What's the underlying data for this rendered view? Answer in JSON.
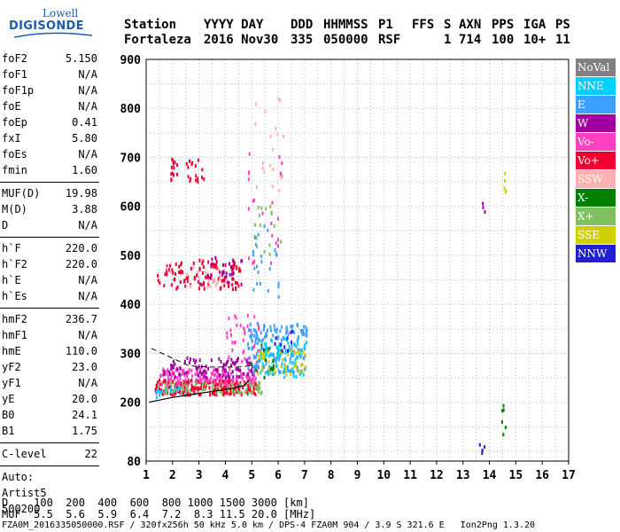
{
  "logo": {
    "line1": "Lowell",
    "line2": "DIGISONDE"
  },
  "header": {
    "row1": [
      "Station",
      "YYYY DAY",
      "DDD",
      "HHMMSS",
      "P1",
      "FFS",
      "S",
      "AXN",
      "PPS",
      "IGA",
      "PS"
    ],
    "row2": [
      "Fortaleza",
      "2016 Nov30",
      "335",
      "050000",
      "RSF",
      "",
      "1",
      "714",
      "100",
      "10+",
      "11"
    ]
  },
  "parameters": {
    "group1": [
      {
        "label": "foF2",
        "value": "5.150"
      },
      {
        "label": "foF1",
        "value": "N/A"
      },
      {
        "label": "foF1p",
        "value": "N/A"
      },
      {
        "label": "foE",
        "value": "N/A"
      },
      {
        "label": "foEp",
        "value": "0.41"
      },
      {
        "label": "fxI",
        "value": "5.80"
      },
      {
        "label": "foEs",
        "value": "N/A"
      },
      {
        "label": "fmin",
        "value": "1.60"
      }
    ],
    "group2": [
      {
        "label": "MUF(D)",
        "value": "19.98"
      },
      {
        "label": "M(D)",
        "value": "3.88"
      },
      {
        "label": "D",
        "value": "N/A"
      }
    ],
    "group3": [
      {
        "label": "h`F",
        "value": "220.0"
      },
      {
        "label": "h`F2",
        "value": "220.0"
      },
      {
        "label": "h`E",
        "value": "N/A"
      },
      {
        "label": "h`Es",
        "value": "N/A"
      }
    ],
    "group4": [
      {
        "label": "hmF2",
        "value": "236.7"
      },
      {
        "label": "hmF1",
        "value": "N/A"
      },
      {
        "label": "hmE",
        "value": "110.0"
      },
      {
        "label": "yF2",
        "value": "23.0"
      },
      {
        "label": "yF1",
        "value": "N/A"
      },
      {
        "label": "yE",
        "value": "20.0"
      },
      {
        "label": "B0",
        "value": "24.1"
      },
      {
        "label": "B1",
        "value": "1.75"
      }
    ],
    "clevel": {
      "label": "C-level",
      "value": "22"
    },
    "auto_label": "Auto:",
    "auto_name": "Artist5",
    "auto_version": "500200"
  },
  "legend": [
    {
      "label": "NoVal",
      "color": "#808080"
    },
    {
      "label": "NNE",
      "color": "#00d0ff"
    },
    {
      "label": "E",
      "color": "#3ca0ff"
    },
    {
      "label": "W",
      "color": "#a000a0"
    },
    {
      "label": "Vo-",
      "color": "#ff40c0"
    },
    {
      "label": "Vo+",
      "color": "#f00030"
    },
    {
      "label": "SSW",
      "color": "#ffb0b0"
    },
    {
      "label": "X-",
      "color": "#008000"
    },
    {
      "label": "X+",
      "color": "#80c060"
    },
    {
      "label": "SSE",
      "color": "#d0d000"
    },
    {
      "label": "NNW",
      "color": "#2020d0"
    }
  ],
  "footer": {
    "d_label": "D",
    "d_values": [
      "100",
      "200",
      "400",
      "600",
      "800",
      "1000",
      "1500",
      "3000"
    ],
    "d_unit": "[km]",
    "muf_label": "MUF",
    "muf_values": [
      "5.5",
      "5.6",
      "5.9",
      "6.4",
      "7.2",
      "8.3",
      "11.5",
      "20.0"
    ],
    "muf_unit": "[MHz]",
    "info": "FZA0M_2016335050000.RSF / 320fx256h 50 kHz 5.0 km / DPS-4 FZA0M 904 / 3.9 S 321.6 E   Ion2Png 1.3.20"
  },
  "chart_data": {
    "type": "scatter",
    "xlim": [
      1,
      17
    ],
    "ylim": [
      80,
      900
    ],
    "x_ticks": [
      1,
      2,
      3,
      4,
      5,
      6,
      7,
      8,
      9,
      10,
      11,
      12,
      13,
      14,
      15,
      16,
      17
    ],
    "y_ticks": [
      80,
      200,
      300,
      400,
      500,
      600,
      700,
      800,
      900
    ],
    "grid": true,
    "legend_position": "right",
    "series": [
      {
        "name": "Vo+",
        "color": "#f00030",
        "clusters": [
          {
            "x": [
              1.3,
              5.2
            ],
            "y": [
              215,
              245
            ],
            "n": 260
          },
          {
            "x": [
              1.4,
              4.6
            ],
            "y": [
              430,
              490
            ],
            "n": 110
          },
          {
            "x": [
              1.9,
              3.3
            ],
            "y": [
              650,
              700
            ],
            "n": 30
          }
        ]
      },
      {
        "name": "Vo-",
        "color": "#ff40c0",
        "clusters": [
          {
            "x": [
              1.5,
              5.2
            ],
            "y": [
              235,
              270
            ],
            "n": 170
          },
          {
            "x": [
              4.0,
              5.3
            ],
            "y": [
              280,
              380
            ],
            "n": 40
          },
          {
            "x": [
              4.8,
              6.2
            ],
            "y": [
              480,
              720
            ],
            "n": 24
          }
        ]
      },
      {
        "name": "W",
        "color": "#a000a0",
        "clusters": [
          {
            "x": [
              1.6,
              5.0
            ],
            "y": [
              250,
              290
            ],
            "n": 90
          },
          {
            "x": [
              3.0,
              4.6
            ],
            "y": [
              440,
              500
            ],
            "n": 26
          },
          {
            "x": [
              13.7,
              13.8
            ],
            "y": [
              575,
              615
            ],
            "n": 3
          }
        ]
      },
      {
        "name": "E",
        "color": "#3ca0ff",
        "clusters": [
          {
            "x": [
              4.8,
              7.1
            ],
            "y": [
              260,
              360
            ],
            "n": 200
          },
          {
            "x": [
              5.0,
              6.0
            ],
            "y": [
              400,
              560
            ],
            "n": 24
          }
        ]
      },
      {
        "name": "NNE",
        "color": "#00d0ff",
        "clusters": [
          {
            "x": [
              5.3,
              7.0
            ],
            "y": [
              250,
              330
            ],
            "n": 70
          },
          {
            "x": [
              1.3,
              2.5
            ],
            "y": [
              210,
              230
            ],
            "n": 20
          }
        ]
      },
      {
        "name": "SSE",
        "color": "#d0d000",
        "clusters": [
          {
            "x": [
              5.2,
              7.1
            ],
            "y": [
              255,
              305
            ],
            "n": 45
          },
          {
            "x": [
              14.5,
              14.6
            ],
            "y": [
              610,
              675
            ],
            "n": 5
          }
        ]
      },
      {
        "name": "X+",
        "color": "#80c060",
        "clusters": [
          {
            "x": [
              1.4,
              5.4
            ],
            "y": [
              218,
              240
            ],
            "n": 70
          },
          {
            "x": [
              5.0,
              6.3
            ],
            "y": [
              470,
              600
            ],
            "n": 16
          }
        ]
      },
      {
        "name": "X-",
        "color": "#008000",
        "clusters": [
          {
            "x": [
              14.4,
              14.6
            ],
            "y": [
              125,
              195
            ],
            "n": 6
          },
          {
            "x": [
              4.9,
              5.8
            ],
            "y": [
              250,
              320
            ],
            "n": 12
          }
        ]
      },
      {
        "name": "SSW",
        "color": "#ffb0b0",
        "clusters": [
          {
            "x": [
              1.7,
              3.8
            ],
            "y": [
              430,
              480
            ],
            "n": 18
          },
          {
            "x": [
              5.0,
              6.2
            ],
            "y": [
              620,
              840
            ],
            "n": 20
          }
        ]
      },
      {
        "name": "NNW",
        "color": "#2020d0",
        "clusters": [
          {
            "x": [
              13.6,
              13.8
            ],
            "y": [
              92,
              118
            ],
            "n": 5
          },
          {
            "x": [
              5.8,
              6.6
            ],
            "y": [
              300,
              350
            ],
            "n": 10
          }
        ]
      }
    ],
    "trace_lower": {
      "x": [
        1.1,
        2.0,
        3.0,
        4.0,
        4.7,
        4.9
      ],
      "y": [
        200,
        210,
        218,
        226,
        234,
        245
      ]
    },
    "trace_dashed": {
      "x": [
        1.2,
        2.0,
        2.6,
        3.0,
        3.5,
        4.0,
        4.5,
        5.0
      ],
      "y": [
        310,
        290,
        275,
        273,
        272,
        272,
        272,
        275
      ]
    }
  }
}
